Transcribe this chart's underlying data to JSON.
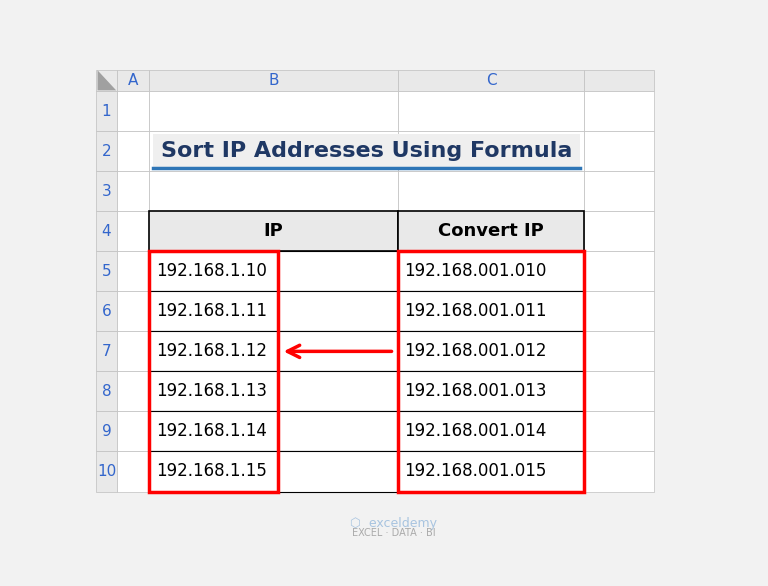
{
  "title": "Sort IP Addresses Using Formula",
  "title_color": "#1F3864",
  "title_fontsize": 16,
  "background_color": "#F2F2F2",
  "col_headers": [
    "IP",
    "Convert IP"
  ],
  "ip_data": [
    "192.168.1.10",
    "192.168.1.11",
    "192.168.1.12",
    "192.168.1.13",
    "192.168.1.14",
    "192.168.1.15"
  ],
  "converted_data": [
    "192.168.001.010",
    "192.168.001.011",
    "192.168.001.012",
    "192.168.001.013",
    "192.168.001.014",
    "192.168.001.015"
  ],
  "header_bg": "#E9E9E9",
  "cell_bg": "#FFFFFF",
  "title_cell_bg": "#F2F2F2",
  "red_border_color": "#FF0000",
  "arrow_color": "#FF0000",
  "grid_color": "#000000",
  "light_grid_color": "#BFBFBF",
  "col_header_row_color": "#333333",
  "underline_color": "#2E75B6",
  "col_header_fontsize": 13,
  "data_fontsize": 12,
  "row_num_fontsize": 11,
  "col_letter_fontsize": 11,
  "watermark_color": "#AAAAAA",
  "triangle_color": "#A0A0A0",
  "num_color": "#3366CC"
}
